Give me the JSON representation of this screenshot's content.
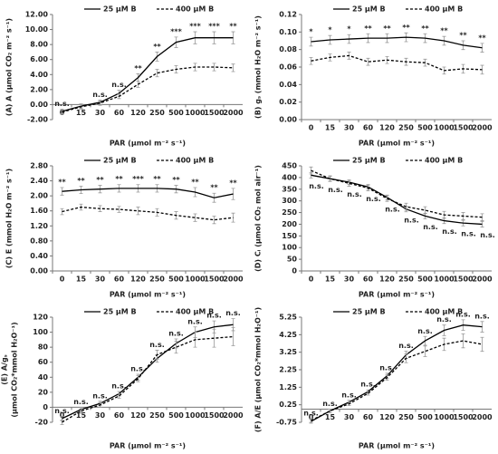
{
  "chart_data": [
    {
      "type": "line",
      "ylabel": [
        "(A) A (μmol CO₂ m⁻² s⁻¹)"
      ],
      "xlabel": "PAR (μmol m⁻² s⁻¹)",
      "categories": [
        "0",
        "15",
        "30",
        "60",
        "120",
        "250",
        "500",
        "1000",
        "1500",
        "2000"
      ],
      "series": [
        {
          "name": "25 μM B",
          "color": "#000000",
          "linestyle": "solid",
          "values": [
            -0.9,
            -0.2,
            0.3,
            1.5,
            3.6,
            6.4,
            8.3,
            8.9,
            8.9,
            8.9
          ],
          "errors": [
            0.3,
            0.3,
            0.3,
            0.4,
            0.5,
            0.6,
            0.7,
            0.8,
            0.8,
            0.8
          ]
        },
        {
          "name": "400 μM B",
          "color": "#000000",
          "linestyle": "dashed",
          "values": [
            -1.0,
            -0.3,
            0.2,
            1.1,
            2.7,
            4.2,
            4.7,
            5.0,
            5.0,
            4.9
          ],
          "errors": [
            0.3,
            0.3,
            0.3,
            0.3,
            0.4,
            0.5,
            0.5,
            0.5,
            0.5,
            0.5
          ]
        }
      ],
      "ylim": [
        -2,
        12
      ],
      "yticks": [
        {
          "value": -2,
          "label": "-2.00"
        },
        {
          "value": 0,
          "label": "0.00"
        },
        {
          "value": 2,
          "label": "2.00"
        },
        {
          "value": 4,
          "label": "4.00"
        },
        {
          "value": 6,
          "label": "6.00"
        },
        {
          "value": 8,
          "label": "8.00"
        },
        {
          "value": 10,
          "label": "10.00"
        },
        {
          "value": 12,
          "label": "12.00"
        }
      ],
      "annotations": [
        "n.s.",
        null,
        "n.s.",
        "n.s.",
        "**",
        "**",
        "***",
        "***",
        "***",
        "**"
      ],
      "legend": "top"
    },
    {
      "type": "line",
      "ylabel": [
        "(B) gₛ (mmol H₂O m⁻² s⁻¹)"
      ],
      "xlabel": "PAR (μmol m⁻² s⁻¹)",
      "categories": [
        "0",
        "15",
        "30",
        "60",
        "120",
        "250",
        "500",
        "1000",
        "1500",
        "2000"
      ],
      "series": [
        {
          "name": "25 μM B",
          "color": "#000000",
          "linestyle": "solid",
          "values": [
            0.089,
            0.091,
            0.092,
            0.093,
            0.093,
            0.094,
            0.093,
            0.09,
            0.085,
            0.082
          ],
          "errors": [
            0.005,
            0.005,
            0.005,
            0.005,
            0.005,
            0.005,
            0.005,
            0.005,
            0.005,
            0.005
          ]
        },
        {
          "name": "400 μM B",
          "color": "#000000",
          "linestyle": "dashed",
          "values": [
            0.067,
            0.071,
            0.073,
            0.066,
            0.068,
            0.066,
            0.065,
            0.056,
            0.058,
            0.057
          ],
          "errors": [
            0.004,
            0.004,
            0.004,
            0.004,
            0.004,
            0.004,
            0.004,
            0.004,
            0.005,
            0.005
          ]
        }
      ],
      "ylim": [
        0,
        0.12
      ],
      "yticks": [
        {
          "value": 0,
          "label": "0.00"
        },
        {
          "value": 0.02,
          "label": "0.02"
        },
        {
          "value": 0.04,
          "label": "0.04"
        },
        {
          "value": 0.06,
          "label": "0.06"
        },
        {
          "value": 0.08,
          "label": "0.08"
        },
        {
          "value": 0.1,
          "label": "0.10"
        },
        {
          "value": 0.12,
          "label": "0.12"
        }
      ],
      "annotations": [
        "*",
        "*",
        "*",
        "**",
        "**",
        "**",
        "**",
        "**",
        "**",
        "**"
      ],
      "legend": "top"
    },
    {
      "type": "line",
      "ylabel": [
        "(C) E (mmol H₂O m⁻² s⁻¹)"
      ],
      "xlabel": "PAR (μmol m⁻² s⁻¹)",
      "categories": [
        "0",
        "15",
        "30",
        "60",
        "120",
        "250",
        "500",
        "1000",
        "1500",
        "2000"
      ],
      "series": [
        {
          "name": "25 μM B",
          "color": "#000000",
          "linestyle": "solid",
          "values": [
            2.12,
            2.16,
            2.18,
            2.2,
            2.2,
            2.2,
            2.18,
            2.1,
            1.95,
            2.05
          ],
          "errors": [
            0.1,
            0.1,
            0.1,
            0.1,
            0.1,
            0.1,
            0.1,
            0.12,
            0.12,
            0.15
          ]
        },
        {
          "name": "400 μM B",
          "color": "#000000",
          "linestyle": "dashed",
          "values": [
            1.58,
            1.7,
            1.66,
            1.64,
            1.6,
            1.56,
            1.48,
            1.42,
            1.36,
            1.42
          ],
          "errors": [
            0.08,
            0.08,
            0.08,
            0.08,
            0.1,
            0.1,
            0.1,
            0.1,
            0.1,
            0.12
          ]
        }
      ],
      "ylim": [
        0,
        2.8
      ],
      "yticks": [
        {
          "value": 0,
          "label": "0.00"
        },
        {
          "value": 0.4,
          "label": "0.40"
        },
        {
          "value": 0.8,
          "label": "0.80"
        },
        {
          "value": 1.2,
          "label": "1.20"
        },
        {
          "value": 1.6,
          "label": "1.60"
        },
        {
          "value": 2,
          "label": "2.00"
        },
        {
          "value": 2.4,
          "label": "2.40"
        },
        {
          "value": 2.8,
          "label": "2.80"
        }
      ],
      "annotations": [
        "**",
        "**",
        "**",
        "**",
        "***",
        "**",
        "**",
        "**",
        "**",
        "**"
      ],
      "legend": "top"
    },
    {
      "type": "line",
      "ylabel": [
        "(D) Cᵢ (μmol CO₂ mol air⁻¹)"
      ],
      "xlabel": "PAR (μmol m⁻² s⁻¹)",
      "categories": [
        "0",
        "15",
        "30",
        "60",
        "120",
        "250",
        "500",
        "1000",
        "1500",
        "2000"
      ],
      "series": [
        {
          "name": "25 μM B",
          "color": "#000000",
          "linestyle": "solid",
          "values": [
            410,
            395,
            380,
            360,
            315,
            265,
            235,
            215,
            205,
            200
          ],
          "errors": [
            12,
            10,
            10,
            10,
            10,
            12,
            12,
            12,
            12,
            12
          ]
        },
        {
          "name": "400 μM B",
          "color": "#000000",
          "linestyle": "dashed",
          "values": [
            430,
            395,
            375,
            355,
            310,
            275,
            260,
            240,
            235,
            230
          ],
          "errors": [
            15,
            12,
            12,
            12,
            12,
            15,
            15,
            15,
            15,
            15
          ]
        }
      ],
      "ylim": [
        0,
        450
      ],
      "yticks": [
        0,
        50,
        100,
        150,
        200,
        250,
        300,
        350,
        400,
        450
      ],
      "annotations": [
        "n.s.",
        "n.s.",
        "n.s.",
        "n.s.",
        "n.s.",
        "n.s.",
        "n.s.",
        "n.s.",
        "n.s.",
        "n.s."
      ],
      "annotation_side": "below",
      "legend": "top"
    },
    {
      "type": "line",
      "ylabel": [
        "(E) A/gₛ",
        "(μmol CO₂*mmol H₂O⁻¹)"
      ],
      "xlabel": "PAR (μmol m⁻² s⁻¹)",
      "categories": [
        "0",
        "15",
        "30",
        "60",
        "120",
        "250",
        "500",
        "1000",
        "1500",
        "2000"
      ],
      "series": [
        {
          "name": "25 μM B",
          "color": "#000000",
          "linestyle": "solid",
          "values": [
            -15,
            -3,
            5,
            18,
            40,
            65,
            85,
            100,
            107,
            110
          ],
          "errors": [
            3,
            3,
            3,
            3,
            4,
            5,
            6,
            7,
            8,
            8
          ]
        },
        {
          "name": "400 μM B",
          "color": "#000000",
          "linestyle": "dashed",
          "values": [
            -20,
            -5,
            3,
            15,
            38,
            70,
            80,
            90,
            92,
            94
          ],
          "errors": [
            3,
            3,
            3,
            3,
            4,
            6,
            8,
            10,
            12,
            12
          ]
        }
      ],
      "ylim": [
        -20,
        120
      ],
      "yticks": [
        -20,
        0,
        20,
        40,
        60,
        80,
        100,
        120
      ],
      "annotations": [
        "n.s.",
        "n.s.",
        "n.s.",
        "n.s.",
        "n.s.",
        "n.s.",
        "n.s.",
        "n.s.",
        "n.s.",
        "n.s."
      ],
      "legend": "top"
    },
    {
      "type": "line",
      "ylabel": [
        "(F) A/E (μmol CO₂*mmol H₂O⁻¹)"
      ],
      "xlabel": "PAR (μmol m⁻² s⁻¹)",
      "categories": [
        "0",
        "15",
        "30",
        "60",
        "120",
        "250",
        "500",
        "1000",
        "1500",
        "2000"
      ],
      "series": [
        {
          "name": "25 μM B",
          "color": "#000000",
          "linestyle": "solid",
          "values": [
            -0.7,
            -0.1,
            0.4,
            1.0,
            1.9,
            3.1,
            3.9,
            4.5,
            4.8,
            4.7
          ],
          "errors": [
            0.1,
            0.1,
            0.1,
            0.1,
            0.15,
            0.2,
            0.25,
            0.3,
            0.3,
            0.3
          ]
        },
        {
          "name": "400 μM B",
          "color": "#000000",
          "linestyle": "dashed",
          "values": [
            -0.65,
            -0.1,
            0.3,
            0.9,
            1.8,
            2.9,
            3.3,
            3.7,
            3.9,
            3.7
          ],
          "errors": [
            0.1,
            0.1,
            0.1,
            0.1,
            0.15,
            0.25,
            0.3,
            0.35,
            0.4,
            0.4
          ]
        }
      ],
      "ylim": [
        -0.75,
        5.25
      ],
      "yticks": [
        -0.75,
        0.25,
        1.25,
        2.25,
        3.25,
        4.25,
        5.25
      ],
      "annotations": [
        "n.s.",
        "n.s.",
        "n.s.",
        "n.s.",
        "n.s.",
        "n.s.",
        "n.s.",
        "n.s.",
        "n.s.",
        "n.s."
      ],
      "legend": "top"
    }
  ]
}
